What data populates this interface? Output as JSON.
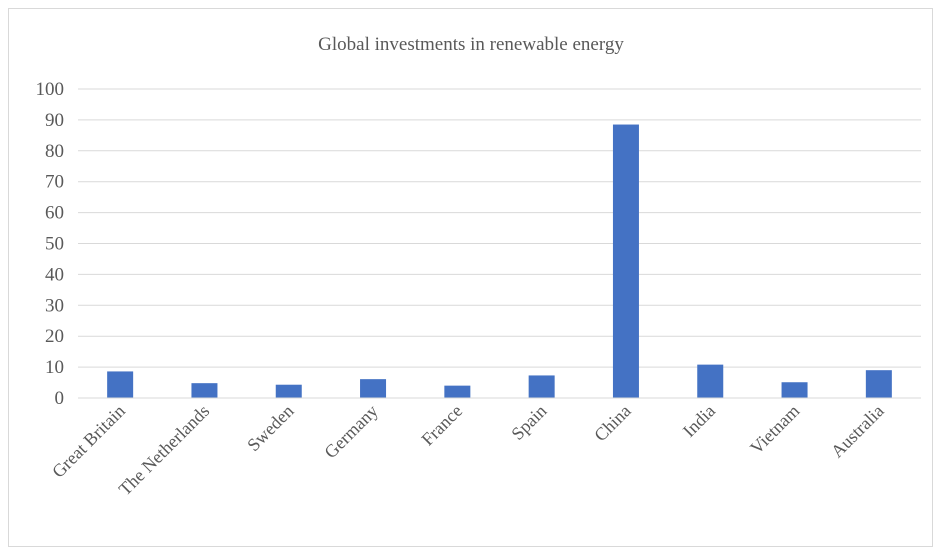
{
  "chart_data": {
    "type": "bar",
    "title": "Global investments in renewable energy",
    "xlabel": "",
    "ylabel": "",
    "categories": [
      "Great Britain",
      "The Netherlands",
      "Sweden",
      "Germany",
      "France",
      "Spain",
      "China",
      "India",
      "Vietnam",
      "Australia"
    ],
    "values": [
      8.6,
      4.8,
      4.3,
      6.1,
      4.0,
      7.3,
      88.5,
      10.8,
      5.1,
      9.0
    ],
    "ylim": [
      0,
      100
    ],
    "yticks": [
      "0",
      "10",
      "20",
      "30",
      "40",
      "50",
      "60",
      "70",
      "80",
      "90",
      "100"
    ],
    "grid": true,
    "legend": "none",
    "bar_color": "#4472C4",
    "grid_color": "#d9d9d9"
  }
}
